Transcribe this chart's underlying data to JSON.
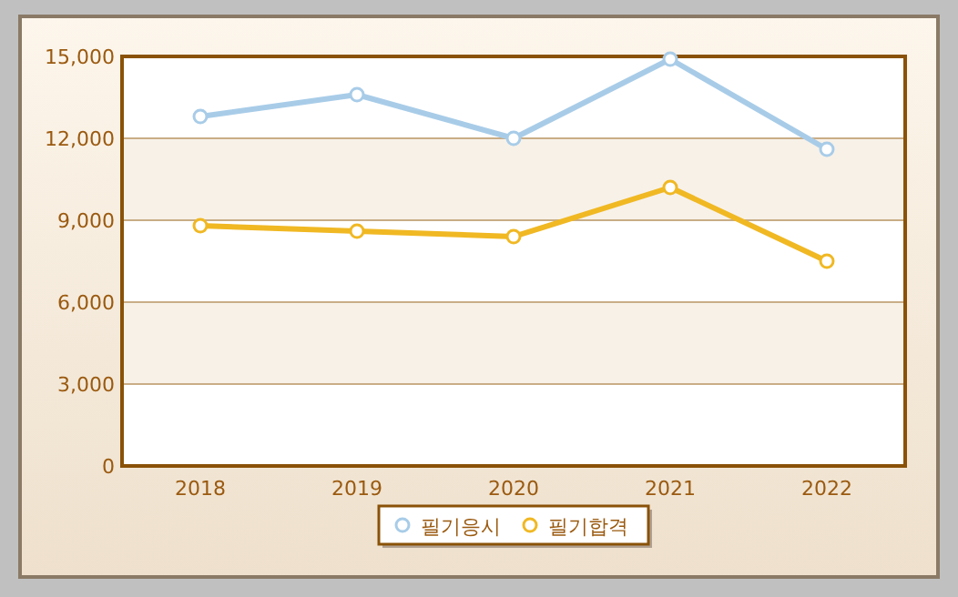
{
  "chart_data": {
    "type": "line",
    "categories": [
      "2018",
      "2019",
      "2020",
      "2021",
      "2022"
    ],
    "series": [
      {
        "name": "필기응시",
        "color": "#a8cce8",
        "values": [
          12800,
          13600,
          12000,
          14900,
          11600
        ]
      },
      {
        "name": "필기합격",
        "color": "#f0b823",
        "values": [
          8800,
          8600,
          8400,
          10200,
          7500
        ]
      }
    ],
    "ylim": [
      0,
      15000
    ],
    "yticks": [
      {
        "value": 0,
        "label": "0"
      },
      {
        "value": 3000,
        "label": "3,000"
      },
      {
        "value": 6000,
        "label": "6,000"
      },
      {
        "value": 9000,
        "label": "9,000"
      },
      {
        "value": 12000,
        "label": "12,000"
      },
      {
        "value": 15000,
        "label": "15,000"
      }
    ],
    "grid": "y",
    "legend": "bottom",
    "marker": "circle",
    "line_style": "solid"
  }
}
